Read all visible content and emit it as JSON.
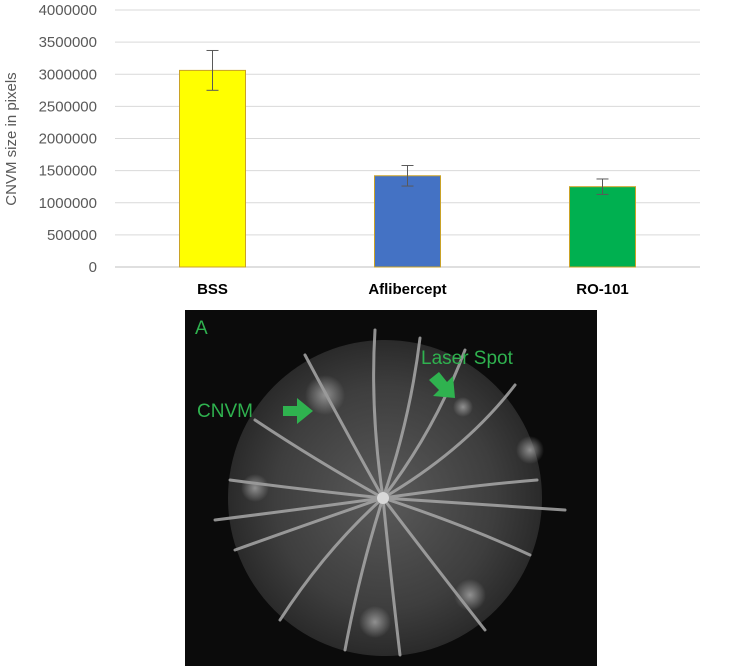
{
  "chart_data": {
    "type": "bar",
    "title": "",
    "xlabel": "",
    "ylabel": "CNVM size in pixels",
    "ylim": [
      0,
      4000000
    ],
    "yticks": [
      "0",
      "500000",
      "1000000",
      "1500000",
      "2000000",
      "2500000",
      "3000000",
      "3500000",
      "4000000"
    ],
    "categories": [
      "BSS",
      "Aflibercept",
      "RO-101"
    ],
    "values": [
      3060000,
      1420000,
      1250000
    ],
    "errors": [
      310000,
      160000,
      120000
    ],
    "colors": [
      "#ffff00",
      "#4472c4",
      "#00b050"
    ],
    "edge_color": "#c9a227",
    "grid": true,
    "legend": "none"
  },
  "fundus": {
    "panel_label": "A",
    "cnvm_label": "CNVM",
    "laser_label": "Laser Spot",
    "label_color": "#2fb24f"
  }
}
